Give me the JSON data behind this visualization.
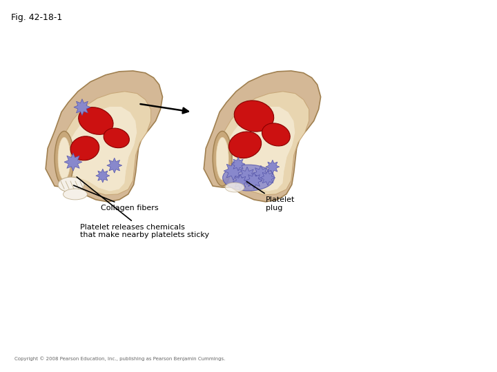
{
  "title": "Fig. 42-18-1",
  "title_fontsize": 9,
  "background_color": "#ffffff",
  "copyright_text": "Copyright © 2008 Pearson Education, Inc., publishing as Pearson Benjamin Cummings.",
  "copyright_fontsize": 5,
  "labels": {
    "collagen_fibers": "Collagen fibers",
    "platelet_releases": "Platelet releases chemicals\nthat make nearby platelets sticky",
    "platelet_plug": "Platelet\nplug"
  },
  "vessel_outer_tan": "#D4B896",
  "vessel_mid_tan": "#C8A87A",
  "vessel_inner_tan": "#E8D5B0",
  "vessel_lumen": "#F2E6CC",
  "vessel_dark_edge": "#A08050",
  "vessel_top_highlight": "#E8D0A0",
  "rbc_color": "#CC1111",
  "rbc_dark": "#880000",
  "platelet_color": "#8888CC",
  "platelet_edge": "#5555AA",
  "collagen_white": "#F5F0E8",
  "collagen_edge": "#C0B090",
  "arrow_color": "#000000"
}
